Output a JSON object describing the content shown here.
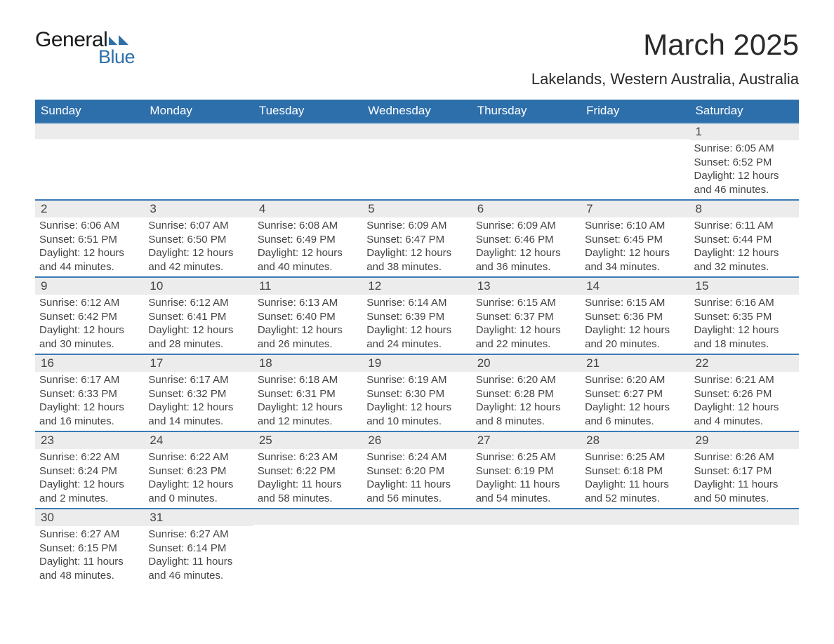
{
  "brand": {
    "word1": "General",
    "word2": "Blue"
  },
  "title": "March 2025",
  "location": "Lakelands, Western Australia, Australia",
  "day_names": [
    "Sunday",
    "Monday",
    "Tuesday",
    "Wednesday",
    "Thursday",
    "Friday",
    "Saturday"
  ],
  "colors": {
    "header_bg": "#2d6fab",
    "header_fg": "#ffffff",
    "row_stripe": "#ececec",
    "divider": "#3a7ab5",
    "text": "#444444",
    "title_text": "#2a2a2a"
  },
  "weeks": [
    [
      null,
      null,
      null,
      null,
      null,
      null,
      {
        "n": "1",
        "sr": "6:05 AM",
        "ss": "6:52 PM",
        "dh": "12",
        "dm": "46"
      }
    ],
    [
      {
        "n": "2",
        "sr": "6:06 AM",
        "ss": "6:51 PM",
        "dh": "12",
        "dm": "44"
      },
      {
        "n": "3",
        "sr": "6:07 AM",
        "ss": "6:50 PM",
        "dh": "12",
        "dm": "42"
      },
      {
        "n": "4",
        "sr": "6:08 AM",
        "ss": "6:49 PM",
        "dh": "12",
        "dm": "40"
      },
      {
        "n": "5",
        "sr": "6:09 AM",
        "ss": "6:47 PM",
        "dh": "12",
        "dm": "38"
      },
      {
        "n": "6",
        "sr": "6:09 AM",
        "ss": "6:46 PM",
        "dh": "12",
        "dm": "36"
      },
      {
        "n": "7",
        "sr": "6:10 AM",
        "ss": "6:45 PM",
        "dh": "12",
        "dm": "34"
      },
      {
        "n": "8",
        "sr": "6:11 AM",
        "ss": "6:44 PM",
        "dh": "12",
        "dm": "32"
      }
    ],
    [
      {
        "n": "9",
        "sr": "6:12 AM",
        "ss": "6:42 PM",
        "dh": "12",
        "dm": "30"
      },
      {
        "n": "10",
        "sr": "6:12 AM",
        "ss": "6:41 PM",
        "dh": "12",
        "dm": "28"
      },
      {
        "n": "11",
        "sr": "6:13 AM",
        "ss": "6:40 PM",
        "dh": "12",
        "dm": "26"
      },
      {
        "n": "12",
        "sr": "6:14 AM",
        "ss": "6:39 PM",
        "dh": "12",
        "dm": "24"
      },
      {
        "n": "13",
        "sr": "6:15 AM",
        "ss": "6:37 PM",
        "dh": "12",
        "dm": "22"
      },
      {
        "n": "14",
        "sr": "6:15 AM",
        "ss": "6:36 PM",
        "dh": "12",
        "dm": "20"
      },
      {
        "n": "15",
        "sr": "6:16 AM",
        "ss": "6:35 PM",
        "dh": "12",
        "dm": "18"
      }
    ],
    [
      {
        "n": "16",
        "sr": "6:17 AM",
        "ss": "6:33 PM",
        "dh": "12",
        "dm": "16"
      },
      {
        "n": "17",
        "sr": "6:17 AM",
        "ss": "6:32 PM",
        "dh": "12",
        "dm": "14"
      },
      {
        "n": "18",
        "sr": "6:18 AM",
        "ss": "6:31 PM",
        "dh": "12",
        "dm": "12"
      },
      {
        "n": "19",
        "sr": "6:19 AM",
        "ss": "6:30 PM",
        "dh": "12",
        "dm": "10"
      },
      {
        "n": "20",
        "sr": "6:20 AM",
        "ss": "6:28 PM",
        "dh": "12",
        "dm": "8"
      },
      {
        "n": "21",
        "sr": "6:20 AM",
        "ss": "6:27 PM",
        "dh": "12",
        "dm": "6"
      },
      {
        "n": "22",
        "sr": "6:21 AM",
        "ss": "6:26 PM",
        "dh": "12",
        "dm": "4"
      }
    ],
    [
      {
        "n": "23",
        "sr": "6:22 AM",
        "ss": "6:24 PM",
        "dh": "12",
        "dm": "2"
      },
      {
        "n": "24",
        "sr": "6:22 AM",
        "ss": "6:23 PM",
        "dh": "12",
        "dm": "0"
      },
      {
        "n": "25",
        "sr": "6:23 AM",
        "ss": "6:22 PM",
        "dh": "11",
        "dm": "58"
      },
      {
        "n": "26",
        "sr": "6:24 AM",
        "ss": "6:20 PM",
        "dh": "11",
        "dm": "56"
      },
      {
        "n": "27",
        "sr": "6:25 AM",
        "ss": "6:19 PM",
        "dh": "11",
        "dm": "54"
      },
      {
        "n": "28",
        "sr": "6:25 AM",
        "ss": "6:18 PM",
        "dh": "11",
        "dm": "52"
      },
      {
        "n": "29",
        "sr": "6:26 AM",
        "ss": "6:17 PM",
        "dh": "11",
        "dm": "50"
      }
    ],
    [
      {
        "n": "30",
        "sr": "6:27 AM",
        "ss": "6:15 PM",
        "dh": "11",
        "dm": "48"
      },
      {
        "n": "31",
        "sr": "6:27 AM",
        "ss": "6:14 PM",
        "dh": "11",
        "dm": "46"
      },
      null,
      null,
      null,
      null,
      null
    ]
  ],
  "labels": {
    "sunrise_prefix": "Sunrise: ",
    "sunset_prefix": "Sunset: ",
    "daylight_prefix": "Daylight: ",
    "hours_word": " hours",
    "and_word": "and ",
    "minutes_word": " minutes."
  }
}
